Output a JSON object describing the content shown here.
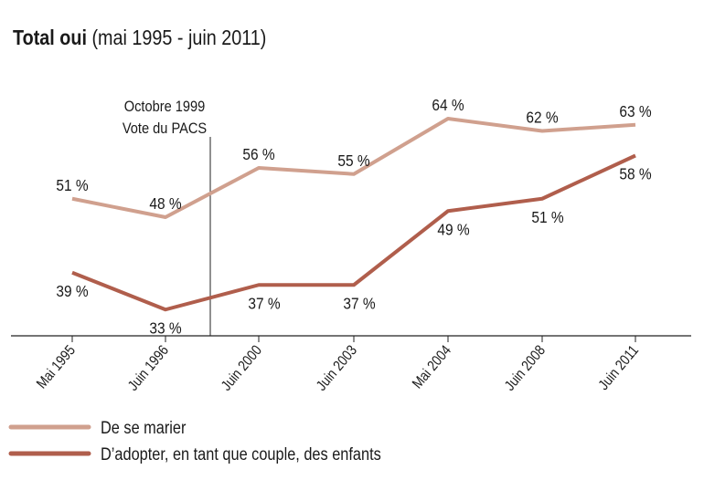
{
  "chart_data": {
    "type": "line",
    "title": "Total oui",
    "subtitle": "(mai 1995 - juin 2011)",
    "categories": [
      "Mai 1995",
      "Juin 1996",
      "Juin 2000",
      "Juin 2003",
      "Mai 2004",
      "Juin 2008",
      "Juin 2011"
    ],
    "series": [
      {
        "name": "De se marier",
        "color": "#d0a08e",
        "values": [
          51,
          48,
          56,
          55,
          64,
          62,
          63
        ]
      },
      {
        "name": "D’adopter, en tant que couple, des enfants",
        "color": "#b05e4c",
        "values": [
          39,
          33,
          37,
          37,
          49,
          51,
          58
        ]
      }
    ],
    "value_suffix": " %",
    "annotation": {
      "lines": [
        "Octobre 1999",
        "Vote du PACS"
      ],
      "between": [
        "Juin 1996",
        "Juin 2000"
      ]
    },
    "legend_position": "bottom-left",
    "grid": false
  }
}
